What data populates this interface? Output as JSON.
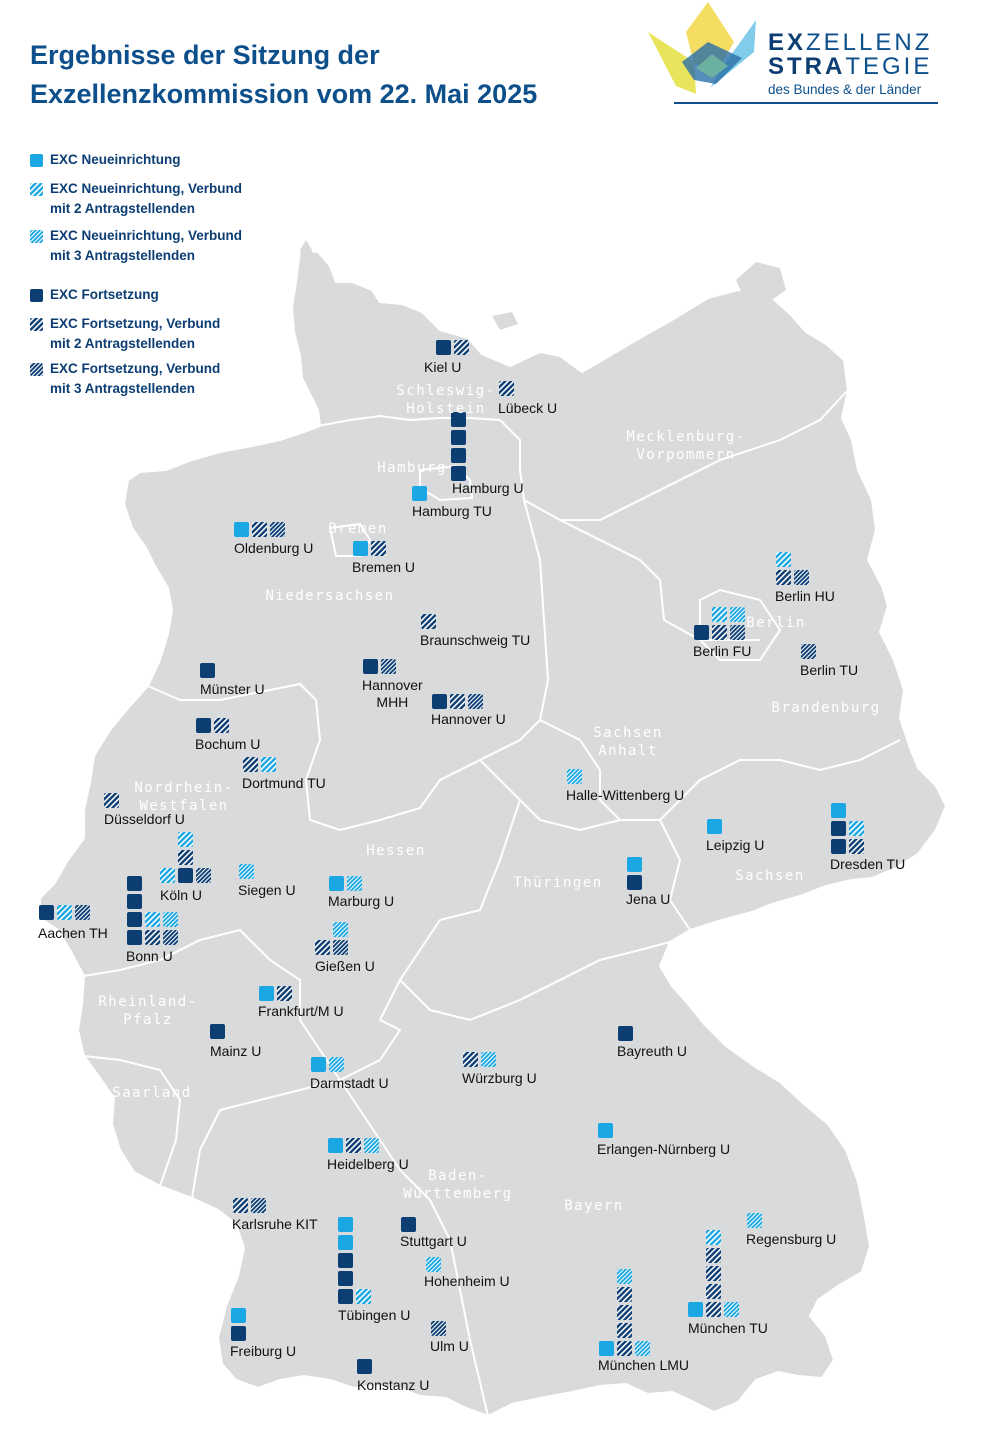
{
  "title_line1": "Ergebnisse der Sitzung der",
  "title_line2": "Exzellenzkommission vom 22. Mai 2025",
  "logo": {
    "line1_a": "EX",
    "line1_b": "ZELLENZ",
    "line2_a": "STRA",
    "line2_b": "TEGIE",
    "line3": "des Bundes & der Länder",
    "color_dark": "#0c3d73",
    "color_light": "#2a7fc0"
  },
  "colors": {
    "neu": "#1aa7e3",
    "fort": "#0c3d73",
    "map_fill": "#d9dadb",
    "map_border": "#ffffff"
  },
  "legend": [
    {
      "type": "neu",
      "label1": "EXC Neueinrichtung",
      "label2": ""
    },
    {
      "type": "neu2",
      "label1": "EXC Neueinrichtung, Verbund",
      "label2": "mit 2 Antragstellenden"
    },
    {
      "type": "neu3",
      "label1": "EXC Neueinrichtung, Verbund",
      "label2": "mit 3 Antragstellenden"
    },
    {
      "type": "fort",
      "label1": "EXC Fortsetzung",
      "label2": ""
    },
    {
      "type": "fort2",
      "label1": "EXC Fortsetzung, Verbund",
      "label2": "mit 2 Antragstellenden"
    },
    {
      "type": "fort3",
      "label1": "EXC Fortsetzung, Verbund",
      "label2": "mit 3 Antragstellenden"
    }
  ],
  "states": [
    {
      "name": "Schleswig-\nHolstein"
    },
    {
      "name": "Hamburg"
    },
    {
      "name": "Mecklenburg-\nVorpommern"
    },
    {
      "name": "Bremen"
    },
    {
      "name": "Niedersachsen"
    },
    {
      "name": "Berlin"
    },
    {
      "name": "Brandenburg"
    },
    {
      "name": "Sachsen\nAnhalt"
    },
    {
      "name": "Nordrhein-\nWestfalen"
    },
    {
      "name": "Hessen"
    },
    {
      "name": "Thüringen"
    },
    {
      "name": "Sachsen"
    },
    {
      "name": "Rheinland-\nPfalz"
    },
    {
      "name": "Saarland"
    },
    {
      "name": "Baden-\nWürttemberg"
    },
    {
      "name": "Bayern"
    }
  ],
  "universities": [
    {
      "name": "Kiel U",
      "clusters": [
        "fort",
        "fort2"
      ]
    },
    {
      "name": "Lübeck U",
      "clusters": [
        "fort2"
      ]
    },
    {
      "name": "Hamburg U",
      "clusters": [
        "fort",
        "fort",
        "fort",
        "fort"
      ]
    },
    {
      "name": "Hamburg TU",
      "clusters": [
        "neu"
      ]
    },
    {
      "name": "Oldenburg U",
      "clusters": [
        "neu",
        "fort2",
        "fort3"
      ]
    },
    {
      "name": "Bremen U",
      "clusters": [
        "neu",
        "fort2"
      ]
    },
    {
      "name": "Braunschweig TU",
      "clusters": [
        "fort2"
      ]
    },
    {
      "name": "Hannover MHH",
      "clusters": [
        "fort",
        "fort3"
      ]
    },
    {
      "name": "Hannover U",
      "clusters": [
        "fort",
        "fort2",
        "fort3"
      ]
    },
    {
      "name": "Münster U",
      "clusters": [
        "fort"
      ]
    },
    {
      "name": "Bochum U",
      "clusters": [
        "fort",
        "fort2"
      ]
    },
    {
      "name": "Dortmund TU",
      "clusters": [
        "fort2",
        "neu2"
      ]
    },
    {
      "name": "Düsseldorf U",
      "clusters": [
        "fort2"
      ]
    },
    {
      "name": "Köln U",
      "clusters": [
        "neu2",
        "fort2",
        "fort",
        "neu2",
        "fort3"
      ]
    },
    {
      "name": "Siegen U",
      "clusters": [
        "neu3"
      ]
    },
    {
      "name": "Aachen TH",
      "clusters": [
        "fort",
        "neu2",
        "fort3"
      ]
    },
    {
      "name": "Bonn U",
      "clusters": [
        "fort",
        "fort",
        "fort",
        "neu2",
        "neu3",
        "fort",
        "fort2",
        "fort3"
      ]
    },
    {
      "name": "Marburg U",
      "clusters": [
        "neu",
        "neu3"
      ]
    },
    {
      "name": "Gießen U",
      "clusters": [
        "neu3",
        "fort2",
        "fort3"
      ]
    },
    {
      "name": "Frankfurt/M U",
      "clusters": [
        "neu",
        "fort2"
      ]
    },
    {
      "name": "Mainz U",
      "clusters": [
        "fort"
      ]
    },
    {
      "name": "Darmstadt U",
      "clusters": [
        "neu",
        "neu3"
      ]
    },
    {
      "name": "Würzburg U",
      "clusters": [
        "fort2",
        "neu3"
      ]
    },
    {
      "name": "Heidelberg U",
      "clusters": [
        "neu",
        "fort2",
        "neu3"
      ]
    },
    {
      "name": "Karlsruhe KIT",
      "clusters": [
        "fort2",
        "fort3"
      ]
    },
    {
      "name": "Stuttgart U",
      "clusters": [
        "fort"
      ]
    },
    {
      "name": "Tübingen U",
      "clusters": [
        "neu",
        "neu",
        "fort",
        "fort",
        "fort",
        "neu2"
      ]
    },
    {
      "name": "Hohenheim U",
      "clusters": [
        "neu3"
      ]
    },
    {
      "name": "Ulm U",
      "clusters": [
        "fort3"
      ]
    },
    {
      "name": "Freiburg U",
      "clusters": [
        "neu",
        "fort"
      ]
    },
    {
      "name": "Konstanz U",
      "clusters": [
        "fort"
      ]
    },
    {
      "name": "Halle-Wittenberg U",
      "clusters": [
        "neu3"
      ]
    },
    {
      "name": "Leipzig U",
      "clusters": [
        "neu"
      ]
    },
    {
      "name": "Jena U",
      "clusters": [
        "neu",
        "fort"
      ]
    },
    {
      "name": "Dresden TU",
      "clusters": [
        "neu",
        "fort",
        "neu2",
        "fort",
        "fort2"
      ]
    },
    {
      "name": "Berlin HU",
      "clusters": [
        "neu2",
        "fort2",
        "fort3"
      ]
    },
    {
      "name": "Berlin FU",
      "clusters": [
        "neu2",
        "neu3",
        "fort",
        "fort2",
        "fort3"
      ]
    },
    {
      "name": "Berlin TU",
      "clusters": [
        "fort3"
      ]
    },
    {
      "name": "Bayreuth U",
      "clusters": [
        "fort"
      ]
    },
    {
      "name": "Erlangen-Nürnberg U",
      "clusters": [
        "neu"
      ]
    },
    {
      "name": "Regensburg U",
      "clusters": [
        "neu3"
      ]
    },
    {
      "name": "München LMU",
      "clusters": [
        "neu3",
        "fort2",
        "fort2",
        "fort2",
        "neu",
        "fort2",
        "neu3"
      ]
    },
    {
      "name": "München TU",
      "clusters": [
        "neu2",
        "fort2",
        "fort2",
        "fort2",
        "neu",
        "fort2",
        "neu3"
      ]
    }
  ]
}
